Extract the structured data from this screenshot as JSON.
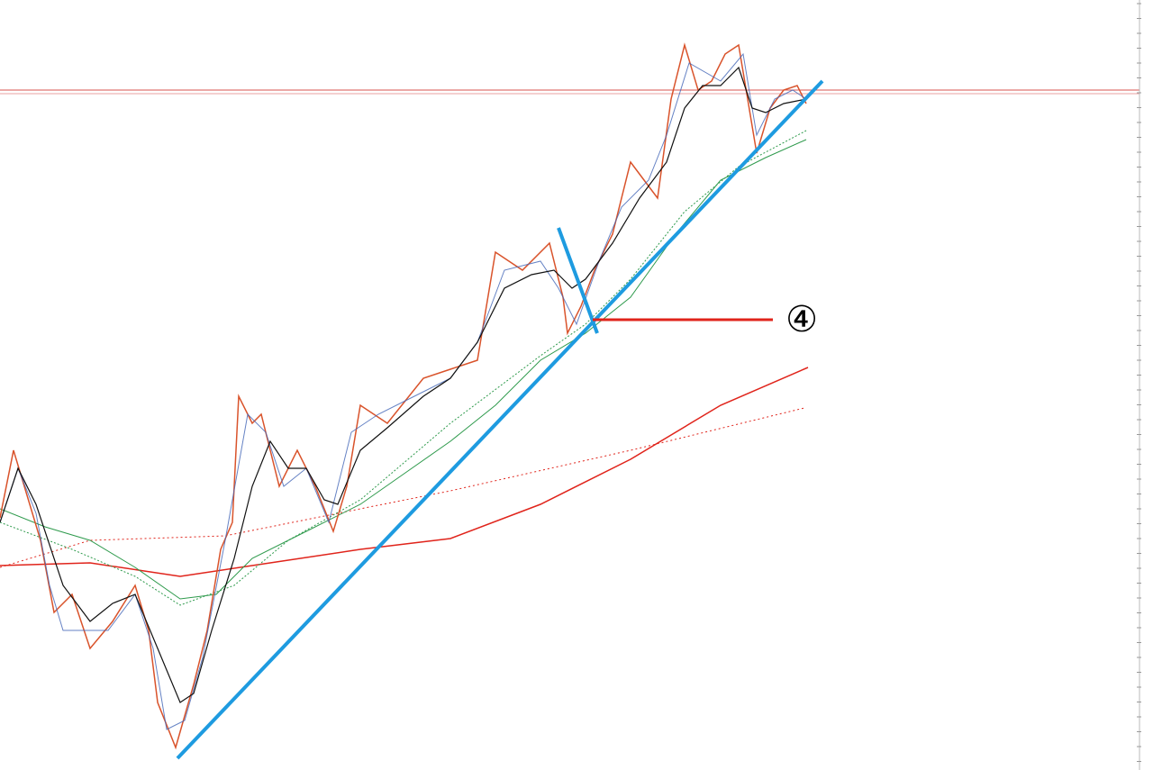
{
  "annotation": {
    "label": "④"
  }
}
